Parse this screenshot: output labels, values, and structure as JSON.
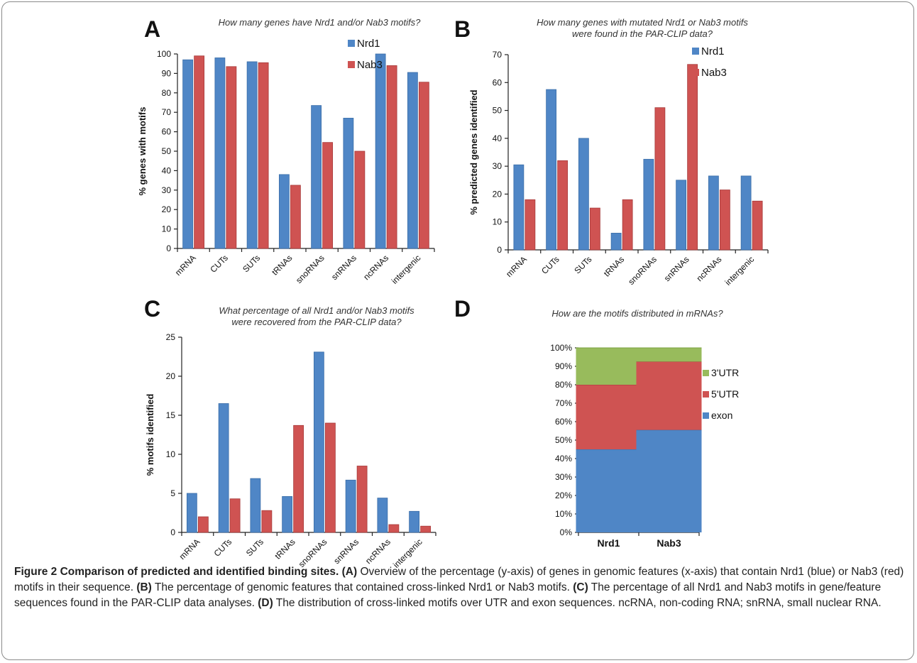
{
  "colors": {
    "nrd1": "#4f86c6",
    "nab3": "#cf5352",
    "exon": "#4f86c6",
    "utr5": "#cf5352",
    "utr3": "#98bb5c"
  },
  "chart_data": [
    {
      "panel": "A",
      "type": "bar",
      "title": "How many genes have Nrd1 and/or Nab3 motifs?",
      "ylabel": "% genes with motifs",
      "ylim": [
        0,
        100
      ],
      "yticks": [
        "0",
        "10",
        "20",
        "30",
        "40",
        "50",
        "60",
        "70",
        "80",
        "90",
        "100"
      ],
      "categories": [
        "mRNA",
        "CUTs",
        "SUTs",
        "tRNAs",
        "snoRNAs",
        "snRNAs",
        "ncRNAs",
        "intergenic"
      ],
      "series": [
        {
          "name": "Nrd1",
          "values": [
            97,
            98,
            96,
            38,
            73.5,
            67,
            100,
            90.5
          ]
        },
        {
          "name": "Nab3",
          "values": [
            99,
            93.5,
            95.5,
            32.5,
            54.5,
            50,
            94,
            85.5
          ]
        }
      ],
      "legend_position": "top-right"
    },
    {
      "panel": "B",
      "type": "bar",
      "title": "How many genes with mutated Nrd1 or Nab3 motifs\nwere found in the PAR-CLIP data?",
      "ylabel": "% predicted genes identified",
      "ylim": [
        0,
        70
      ],
      "yticks": [
        "0",
        "10",
        "20",
        "30",
        "40",
        "50",
        "60",
        "70"
      ],
      "categories": [
        "mRNA",
        "CUTs",
        "SUTs",
        "tRNAs",
        "snoRNAs",
        "snRNAs",
        "ncRNAs",
        "intergenic"
      ],
      "series": [
        {
          "name": "Nrd1",
          "values": [
            30.5,
            57.5,
            40,
            6,
            32.5,
            25,
            26.5,
            26.5
          ]
        },
        {
          "name": "Nab3",
          "values": [
            18,
            32,
            15,
            18,
            51,
            66.5,
            21.5,
            17.5
          ]
        }
      ],
      "legend_position": "top-right"
    },
    {
      "panel": "C",
      "type": "bar",
      "title": "What percentage of all Nrd1 and/or Nab3 motifs\nwere recovered from the PAR-CLIP data?",
      "ylabel": "% motifs identified",
      "ylim": [
        0,
        25
      ],
      "yticks": [
        "0",
        "5",
        "10",
        "15",
        "20",
        "25"
      ],
      "categories": [
        "mRNA",
        "CUTs",
        "SUTs",
        "tRNAs",
        "snoRNAs",
        "snRNAs",
        "ncRNAs",
        "intergenic"
      ],
      "series": [
        {
          "values": [
            5,
            16.5,
            6.9,
            4.6,
            23.1,
            6.7,
            4.4,
            2.7
          ]
        },
        {
          "values": [
            2,
            4.3,
            2.8,
            13.7,
            14,
            8.5,
            1,
            0.8
          ]
        }
      ]
    },
    {
      "panel": "D",
      "type": "bar",
      "stacked": true,
      "title": "How are the motifs distributed in mRNAs?",
      "ylim": [
        0,
        100
      ],
      "yticks": [
        "0%",
        "10%",
        "20%",
        "30%",
        "40%",
        "50%",
        "60%",
        "70%",
        "80%",
        "90%",
        "100%"
      ],
      "categories": [
        "Nrd1",
        "Nab3"
      ],
      "series": [
        {
          "name": "exon",
          "values": [
            45,
            55.5
          ]
        },
        {
          "name": "5'UTR",
          "values": [
            35,
            37
          ]
        },
        {
          "name": "3'UTR",
          "values": [
            20,
            7.5
          ]
        }
      ],
      "legend_position": "right"
    }
  ],
  "caption": {
    "label": "Figure 2",
    "title": "Comparison of predicted and identified binding sites.",
    "parts": [
      {
        "tag": "(A)",
        "text": "Overview of the percentage (y-axis) of genes in genomic features (x-axis) that contain Nrd1 (blue) or Nab3 (red) motifs in their sequence."
      },
      {
        "tag": "(B)",
        "text": "The percentage of genomic features that contained cross-linked Nrd1 or Nab3 motifs."
      },
      {
        "tag": "(C)",
        "text": "The percentage of all Nrd1 and Nab3 motifs in gene/feature sequences found in the PAR-CLIP data analyses."
      },
      {
        "tag": "(D)",
        "text": "The distribution of cross-linked motifs over UTR and exon sequences. ncRNA, non-coding RNA; snRNA, small nuclear RNA."
      }
    ]
  }
}
